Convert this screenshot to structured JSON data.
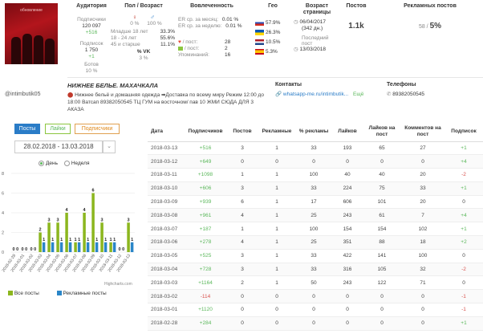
{
  "profile": {
    "handle": "@intimbutik05",
    "avatar_caption": "обновление"
  },
  "audience": {
    "title": "Аудитория",
    "subscribers_label": "Подписчики",
    "subscribers_value": "120 097",
    "subscribers_delta": "+516",
    "following_label": "Подписок",
    "following_value": "1 750",
    "following_delta": "+1",
    "bots_label": "Ботов",
    "bots_value": "10 %"
  },
  "gender_age": {
    "title": "Пол / Возраст",
    "female_pct": "0 %",
    "male_pct": "100 %",
    "ages": [
      {
        "label": "Младше 18 лет",
        "value": "33.3%"
      },
      {
        "label": "18 - 24 лет",
        "value": "55.6%"
      },
      {
        "label": "45 и старше",
        "value": "11.1%"
      }
    ],
    "vk_label": "% VK",
    "vk_value": "3 %"
  },
  "engagement": {
    "title": "Вовлеченность",
    "er_month_label": "ER ср. за месяц:",
    "er_month_value": "0.01 %",
    "er_week_label": "ER ср. за неделю:",
    "er_week_value": "0.01 %",
    "likes_per_post_label": "/ пост:",
    "likes_per_post_value": "28",
    "comments_per_post_label": "/ пост:",
    "comments_per_post_value": "2",
    "mentions_label": "Упоминаний:",
    "mentions_value": "16",
    "heart_color": "#e74c3c",
    "comment_color": "#8cc63f"
  },
  "geo": {
    "title": "Гео",
    "items": [
      {
        "value": "57.9%"
      },
      {
        "value": "26.3%"
      },
      {
        "value": "10.5%"
      },
      {
        "value": "5.3%"
      }
    ]
  },
  "page_age": {
    "title": "Возраст страницы",
    "created": "06/04/2017",
    "days": "(342 дн.)",
    "last_post_label": "Последний пост",
    "last_post": "13/03/2018"
  },
  "posts": {
    "title": "Постов",
    "value": "1.1k"
  },
  "ad_posts": {
    "title": "Рекламных постов",
    "count": "58 /",
    "pct": "5%"
  },
  "business": {
    "name": "НИЖНЕЕ БЕЛЬЕ. МАХАЧКАЛА",
    "description": "Нижнее бельё и домашняя одежда ➡Доставка по всему миру Режим 12:00 до 18:00 Ватсап 89382050545 ТЦ ГУМ на восточном/ пав 10 ЖМИ СЮДА ДЛЯ 3 АКАЗА",
    "contacts_label": "Контакты",
    "contact_link": "whatsapp-me.ru/intimbutik...",
    "contact_extra": "Ещё",
    "phones_label": "Телефоны",
    "phone": "89382050545"
  },
  "tabs": [
    {
      "label": "Посты"
    },
    {
      "label": "Лайки"
    },
    {
      "label": "Подписчики"
    }
  ],
  "date_range": "28.02.2018 - 13.03.2018",
  "period": {
    "day": "День",
    "week": "Неделя"
  },
  "credit": "Highcharts.com",
  "chart_data": {
    "type": "bar",
    "categories": [
      "2018-02-28",
      "2018-03-01",
      "2018-03-02",
      "2018-03-03",
      "2018-03-04",
      "2018-03-05",
      "2018-03-06",
      "2018-03-07",
      "2018-03-08",
      "2018-03-09",
      "2018-03-10",
      "2018-03-11",
      "2018-03-12",
      "2018-03-13"
    ],
    "series": [
      {
        "name": "Все посты",
        "color": "#8cb61e",
        "values": [
          0,
          0,
          0,
          2,
          3,
          3,
          4,
          1,
          4,
          6,
          3,
          1,
          0,
          3
        ]
      },
      {
        "name": "Рекламные посты",
        "color": "#2a86c8",
        "values": [
          0,
          0,
          0,
          1,
          1,
          1,
          1,
          1,
          1,
          1,
          1,
          1,
          0,
          1
        ]
      }
    ],
    "y_ticks": [
      "0",
      "2",
      "4",
      "6",
      "8"
    ],
    "ylim": [
      0,
      8
    ],
    "grid": true,
    "legend": "bottom"
  },
  "table": {
    "headers": [
      "Дата",
      "Подписчиков",
      "Постов",
      "Рекламные",
      "% рекламы",
      "Лайков",
      "Лайков на пост",
      "Комментов на пост",
      "Подписок"
    ],
    "rows": [
      [
        "2018-03-13",
        "+516",
        "3",
        "1",
        "33",
        "193",
        "65",
        "27",
        "+1"
      ],
      [
        "2018-03-12",
        "+649",
        "0",
        "0",
        "0",
        "0",
        "0",
        "0",
        "+4"
      ],
      [
        "2018-03-11",
        "+1098",
        "1",
        "1",
        "100",
        "40",
        "40",
        "20",
        "-2"
      ],
      [
        "2018-03-10",
        "+606",
        "3",
        "1",
        "33",
        "224",
        "75",
        "33",
        "+1"
      ],
      [
        "2018-03-09",
        "+939",
        "6",
        "1",
        "17",
        "606",
        "101",
        "20",
        "0"
      ],
      [
        "2018-03-08",
        "+961",
        "4",
        "1",
        "25",
        "243",
        "61",
        "7",
        "+4"
      ],
      [
        "2018-03-07",
        "+187",
        "1",
        "1",
        "100",
        "154",
        "154",
        "102",
        "+1"
      ],
      [
        "2018-03-06",
        "+278",
        "4",
        "1",
        "25",
        "351",
        "88",
        "18",
        "+2"
      ],
      [
        "2018-03-05",
        "+525",
        "3",
        "1",
        "33",
        "422",
        "141",
        "100",
        "0"
      ],
      [
        "2018-03-04",
        "+728",
        "3",
        "1",
        "33",
        "316",
        "105",
        "32",
        "-2"
      ],
      [
        "2018-03-03",
        "+1164",
        "2",
        "1",
        "50",
        "243",
        "122",
        "71",
        "0"
      ],
      [
        "2018-03-02",
        "-114",
        "0",
        "0",
        "0",
        "0",
        "0",
        "0",
        "-1"
      ],
      [
        "2018-03-01",
        "+1120",
        "0",
        "0",
        "0",
        "0",
        "0",
        "0",
        "-1"
      ],
      [
        "2018-02-28",
        "+284",
        "0",
        "0",
        "0",
        "0",
        "0",
        "0",
        "+1"
      ]
    ]
  }
}
